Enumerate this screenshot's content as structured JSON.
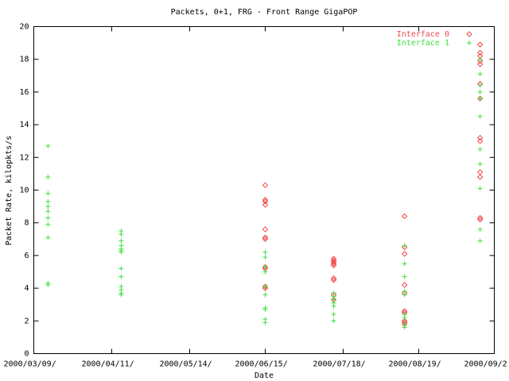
{
  "chart_data": {
    "type": "scatter",
    "title": "Packets, 0+1, FRG - Front Range GigaPOP",
    "x_label": "Date",
    "y_label": "Packet Rate, kilopkts/s",
    "xlim": [
      "2000-03-09",
      "2000-09-20"
    ],
    "xticks": [
      {
        "value": "2000-03-09",
        "label": "2000/03/09/"
      },
      {
        "value": "2000-04-11",
        "label": "2000/04/11/"
      },
      {
        "value": "2000-05-14",
        "label": "2000/05/14/"
      },
      {
        "value": "2000-06-15",
        "label": "2000/06/15/"
      },
      {
        "value": "2000-07-18",
        "label": "2000/07/18/"
      },
      {
        "value": "2000-08-19",
        "label": "2000/08/19/"
      },
      {
        "value": "2000-09-20",
        "label": "2000/09/2"
      }
    ],
    "ylim": [
      0,
      20
    ],
    "yticks": [
      0,
      2,
      4,
      6,
      8,
      10,
      12,
      14,
      16,
      18,
      20
    ],
    "legend": "top-right",
    "series": [
      {
        "name": "Interface 0",
        "color": "#f04848",
        "marker": "diamond",
        "x": [
          "2000-06-15",
          "2000-06-15",
          "2000-06-15",
          "2000-06-15",
          "2000-06-15",
          "2000-06-15",
          "2000-06-15",
          "2000-06-15",
          "2000-06-15",
          "2000-06-15",
          "2000-06-15",
          "2000-07-14",
          "2000-07-14",
          "2000-07-14",
          "2000-07-14",
          "2000-07-14",
          "2000-07-14",
          "2000-07-14",
          "2000-07-14",
          "2000-07-14",
          "2000-08-13",
          "2000-08-13",
          "2000-08-13",
          "2000-08-13",
          "2000-08-13",
          "2000-08-13",
          "2000-08-13",
          "2000-08-13",
          "2000-08-13",
          "2000-08-13",
          "2000-09-14",
          "2000-09-14",
          "2000-09-14",
          "2000-09-14",
          "2000-09-14",
          "2000-09-14",
          "2000-09-14",
          "2000-09-14",
          "2000-09-14",
          "2000-09-14",
          "2000-09-14",
          "2000-09-14",
          "2000-09-14"
        ],
        "values": [
          10.3,
          9.4,
          9.3,
          9.1,
          7.6,
          7.1,
          7.0,
          5.3,
          5.2,
          4.1,
          4.0,
          5.8,
          5.7,
          5.6,
          5.5,
          5.4,
          4.6,
          4.5,
          3.6,
          3.3,
          8.4,
          6.5,
          6.1,
          4.2,
          3.7,
          2.6,
          2.5,
          2.0,
          1.9,
          1.8,
          18.9,
          18.4,
          18.2,
          17.9,
          17.7,
          16.5,
          15.6,
          13.2,
          13.0,
          11.1,
          10.8,
          8.3,
          8.2
        ]
      },
      {
        "name": "Interface 1",
        "color": "#40e040",
        "marker": "plus",
        "x": [
          "2000-03-15",
          "2000-03-15",
          "2000-03-15",
          "2000-03-15",
          "2000-03-15",
          "2000-03-15",
          "2000-03-15",
          "2000-03-15",
          "2000-03-15",
          "2000-03-15",
          "2000-03-15",
          "2000-04-15",
          "2000-04-15",
          "2000-04-15",
          "2000-04-15",
          "2000-04-15",
          "2000-04-15",
          "2000-04-15",
          "2000-04-15",
          "2000-04-15",
          "2000-04-15",
          "2000-04-15",
          "2000-04-15",
          "2000-04-15",
          "2000-06-15",
          "2000-06-15",
          "2000-06-15",
          "2000-06-15",
          "2000-06-15",
          "2000-06-15",
          "2000-06-15",
          "2000-06-15",
          "2000-06-15",
          "2000-06-15",
          "2000-07-14",
          "2000-07-14",
          "2000-07-14",
          "2000-07-14",
          "2000-07-14",
          "2000-07-14",
          "2000-07-14",
          "2000-08-13",
          "2000-08-13",
          "2000-08-13",
          "2000-08-13",
          "2000-08-13",
          "2000-08-13",
          "2000-08-13",
          "2000-08-13",
          "2000-08-13",
          "2000-09-14",
          "2000-09-14",
          "2000-09-14",
          "2000-09-14",
          "2000-09-14",
          "2000-09-14",
          "2000-09-14",
          "2000-09-14",
          "2000-09-14",
          "2000-09-14",
          "2000-09-14"
        ],
        "values": [
          12.7,
          10.8,
          9.8,
          9.3,
          9.0,
          8.7,
          8.3,
          7.9,
          7.1,
          4.3,
          4.2,
          7.5,
          7.3,
          6.9,
          6.6,
          6.4,
          6.3,
          6.2,
          5.2,
          4.7,
          4.1,
          3.9,
          3.7,
          3.6,
          6.2,
          5.9,
          5.3,
          5.0,
          4.1,
          3.6,
          2.8,
          2.7,
          2.1,
          1.9,
          3.7,
          3.5,
          3.3,
          3.1,
          2.9,
          2.4,
          2.0,
          6.6,
          5.5,
          4.7,
          3.8,
          3.6,
          2.4,
          2.2,
          1.8,
          1.6,
          18.0,
          17.1,
          16.4,
          16.0,
          15.6,
          14.5,
          12.5,
          11.6,
          10.1,
          7.6,
          6.9
        ]
      }
    ]
  }
}
